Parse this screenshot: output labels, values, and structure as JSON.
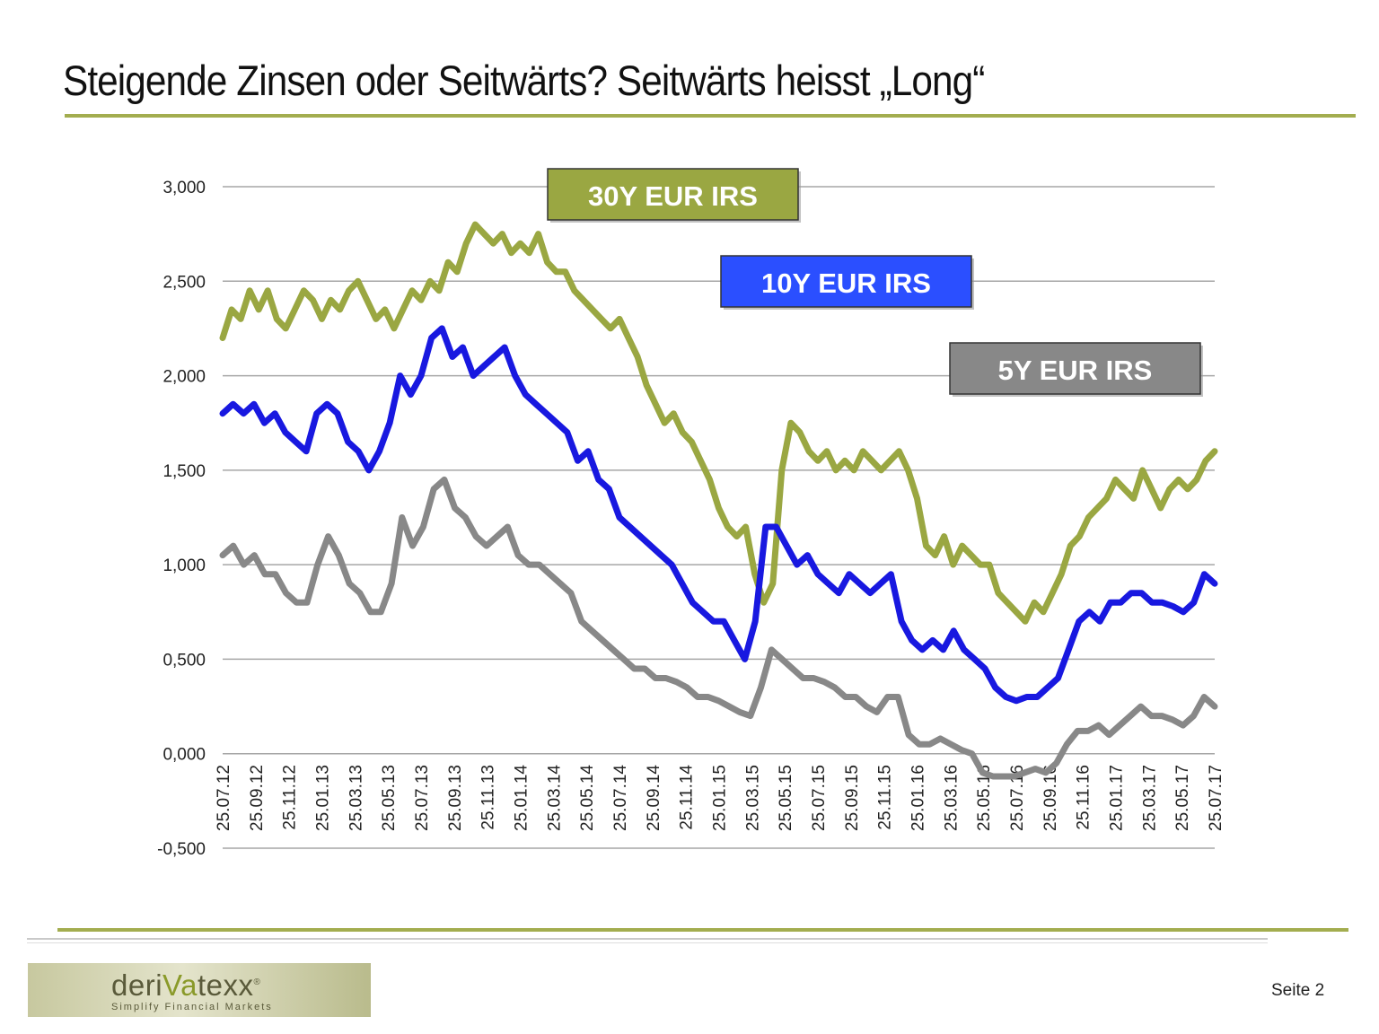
{
  "slide": {
    "title": "Steigende Zinsen oder Seitwärts? Seitwärts heisst „Long“",
    "page_label": "Seite 2",
    "logo": {
      "wordmark_pre": "deri",
      "wordmark_mid": "Va",
      "wordmark_post": "texx",
      "registered": "®",
      "tagline": "Simplify Financial Markets"
    },
    "colors": {
      "accent": "#a3ad4f",
      "rule_gray": "#c9c9c9"
    }
  },
  "chart_data": {
    "type": "line",
    "title": "",
    "xlabel": "",
    "ylabel": "",
    "ylim": [
      -0.5,
      3.0
    ],
    "yticks": [
      "3,000",
      "2,500",
      "2,000",
      "1,500",
      "1,000",
      "0,500",
      "0,000",
      "-0,500"
    ],
    "ytick_values": [
      3.0,
      2.5,
      2.0,
      1.5,
      1.0,
      0.5,
      0.0,
      -0.5
    ],
    "grid": true,
    "x_tick_labels": [
      "25.07.12",
      "25.09.12",
      "25.11.12",
      "25.01.13",
      "25.03.13",
      "25.05.13",
      "25.07.13",
      "25.09.13",
      "25.11.13",
      "25.01.14",
      "25.03.14",
      "25.05.14",
      "25.07.14",
      "25.09.14",
      "25.11.14",
      "25.01.15",
      "25.03.15",
      "25.05.15",
      "25.07.15",
      "25.09.15",
      "25.11.15",
      "25.01.16",
      "25.03.16",
      "25.05.16",
      "25.07.16",
      "25.09.16",
      "25.11.16",
      "25.01.17",
      "25.03.17",
      "25.05.17",
      "25.07.17"
    ],
    "series": [
      {
        "name": "30Y EUR IRS",
        "color": "#9aa742",
        "label_position": "top-center",
        "values": [
          2.2,
          2.35,
          2.3,
          2.45,
          2.35,
          2.45,
          2.3,
          2.25,
          2.35,
          2.45,
          2.4,
          2.3,
          2.4,
          2.35,
          2.45,
          2.5,
          2.4,
          2.3,
          2.35,
          2.25,
          2.35,
          2.45,
          2.4,
          2.5,
          2.45,
          2.6,
          2.55,
          2.7,
          2.8,
          2.75,
          2.7,
          2.75,
          2.65,
          2.7,
          2.65,
          2.75,
          2.6,
          2.55,
          2.55,
          2.45,
          2.4,
          2.35,
          2.3,
          2.25,
          2.3,
          2.2,
          2.1,
          1.95,
          1.85,
          1.75,
          1.8,
          1.7,
          1.65,
          1.55,
          1.45,
          1.3,
          1.2,
          1.15,
          1.2,
          0.95,
          0.8,
          0.9,
          1.5,
          1.75,
          1.7,
          1.6,
          1.55,
          1.6,
          1.5,
          1.55,
          1.5,
          1.6,
          1.55,
          1.5,
          1.55,
          1.6,
          1.5,
          1.35,
          1.1,
          1.05,
          1.15,
          1.0,
          1.1,
          1.05,
          1.0,
          1.0,
          0.85,
          0.8,
          0.75,
          0.7,
          0.8,
          0.75,
          0.85,
          0.95,
          1.1,
          1.15,
          1.25,
          1.3,
          1.35,
          1.45,
          1.4,
          1.35,
          1.5,
          1.4,
          1.3,
          1.4,
          1.45,
          1.4,
          1.45,
          1.55,
          1.6
        ]
      },
      {
        "name": "10Y EUR IRS",
        "color": "#1818e0",
        "label_position": "top-center",
        "values": [
          1.8,
          1.85,
          1.8,
          1.85,
          1.75,
          1.8,
          1.7,
          1.65,
          1.6,
          1.8,
          1.85,
          1.8,
          1.65,
          1.6,
          1.5,
          1.6,
          1.75,
          2.0,
          1.9,
          2.0,
          2.2,
          2.25,
          2.1,
          2.15,
          2.0,
          2.05,
          2.1,
          2.15,
          2.0,
          1.9,
          1.85,
          1.8,
          1.75,
          1.7,
          1.55,
          1.6,
          1.45,
          1.4,
          1.25,
          1.2,
          1.15,
          1.1,
          1.05,
          1.0,
          0.9,
          0.8,
          0.75,
          0.7,
          0.7,
          0.6,
          0.5,
          0.7,
          1.2,
          1.2,
          1.1,
          1.0,
          1.05,
          0.95,
          0.9,
          0.85,
          0.95,
          0.9,
          0.85,
          0.9,
          0.95,
          0.7,
          0.6,
          0.55,
          0.6,
          0.55,
          0.65,
          0.55,
          0.5,
          0.45,
          0.35,
          0.3,
          0.28,
          0.3,
          0.3,
          0.35,
          0.4,
          0.55,
          0.7,
          0.75,
          0.7,
          0.8,
          0.8,
          0.85,
          0.85,
          0.8,
          0.8,
          0.78,
          0.75,
          0.8,
          0.95,
          0.9
        ]
      },
      {
        "name": "5Y EUR IRS",
        "color": "#888888",
        "label_position": "right",
        "values": [
          1.05,
          1.1,
          1.0,
          1.05,
          0.95,
          0.95,
          0.85,
          0.8,
          0.8,
          1.0,
          1.15,
          1.05,
          0.9,
          0.85,
          0.75,
          0.75,
          0.9,
          1.25,
          1.1,
          1.2,
          1.4,
          1.45,
          1.3,
          1.25,
          1.15,
          1.1,
          1.15,
          1.2,
          1.05,
          1.0,
          1.0,
          0.95,
          0.9,
          0.85,
          0.7,
          0.65,
          0.6,
          0.55,
          0.5,
          0.45,
          0.45,
          0.4,
          0.4,
          0.38,
          0.35,
          0.3,
          0.3,
          0.28,
          0.25,
          0.22,
          0.2,
          0.35,
          0.55,
          0.5,
          0.45,
          0.4,
          0.4,
          0.38,
          0.35,
          0.3,
          0.3,
          0.25,
          0.22,
          0.3,
          0.3,
          0.1,
          0.05,
          0.05,
          0.08,
          0.05,
          0.02,
          0.0,
          -0.1,
          -0.12,
          -0.12,
          -0.12,
          -0.1,
          -0.08,
          -0.1,
          -0.05,
          0.05,
          0.12,
          0.12,
          0.15,
          0.1,
          0.15,
          0.2,
          0.25,
          0.2,
          0.2,
          0.18,
          0.15,
          0.2,
          0.3,
          0.25
        ]
      }
    ]
  }
}
